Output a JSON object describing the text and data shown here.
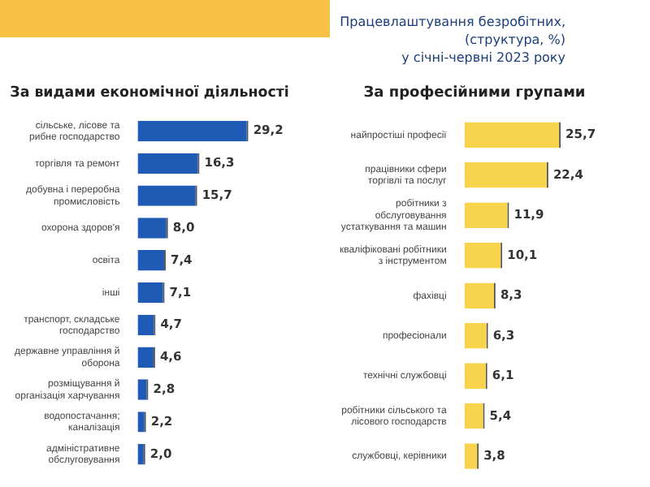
{
  "chart_data": [
    {
      "type": "bar",
      "orientation": "horizontal",
      "title": "За видами економічної діяльності",
      "annotations": [
        "Працевлаштування безробітних,\n(структура, %)\nу січні-червні 2023 року"
      ],
      "categories": [
        "сільське, лісове та рибне господарство",
        "торгівля та ремонт",
        "добувна і переробна промисловість",
        "охорона здоров'я",
        "освіта",
        "інші",
        "транспорт, складське господарство",
        "державне управління й оборона",
        "розміщування й організація харчування",
        "водопостачання; каналізація",
        "адміністративне обслуговування"
      ],
      "values": [
        29.2,
        16.3,
        15.7,
        8.0,
        7.4,
        7.1,
        4.7,
        4.6,
        2.8,
        2.2,
        2.0
      ],
      "value_labels": [
        "29,2",
        "16,3",
        "15,7",
        "8,0",
        "7,4",
        "7,1",
        "4,7",
        "4,6",
        "2,8",
        "2,2",
        "2,0"
      ],
      "color": "#1f5bb5"
    },
    {
      "type": "bar",
      "orientation": "horizontal",
      "title": "За професійними групами",
      "categories": [
        "найпростіші професії",
        "працівники сфери торгівлі та послуг",
        "робітники з обслуговування устаткування та машин",
        "кваліфіковані робітники з інструментом",
        "фахівці",
        "професіонали",
        "технічні службовці",
        "робітники сільського та лісового господарств",
        "службовці, керівники"
      ],
      "values": [
        25.7,
        22.4,
        11.9,
        10.1,
        8.3,
        6.3,
        6.1,
        5.4,
        3.8
      ],
      "value_labels": [
        "25,7",
        "22,4",
        "11,9",
        "10,1",
        "8,3",
        "6,3",
        "6,1",
        "5,4",
        "3,8"
      ],
      "color": "#f7d44c"
    }
  ]
}
